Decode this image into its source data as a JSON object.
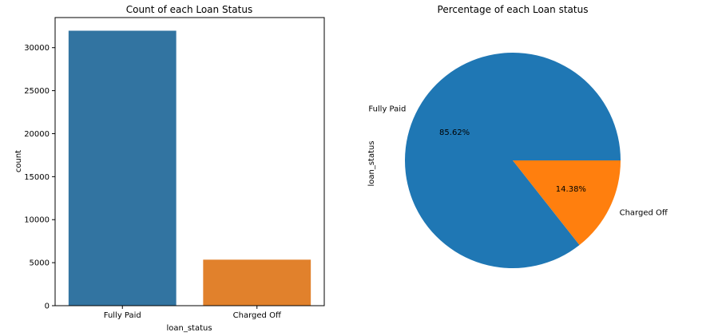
{
  "chart_data": [
    {
      "type": "bar",
      "title": "Count of each Loan Status",
      "xlabel": "loan_status",
      "ylabel": "count",
      "categories": [
        "Fully Paid",
        "Charged Off"
      ],
      "values": [
        31970,
        5350
      ],
      "ylim": [
        0,
        33500
      ],
      "yticks": [
        0,
        5000,
        10000,
        15000,
        20000,
        25000,
        30000
      ],
      "colors": [
        "#3274a1",
        "#e1812c"
      ],
      "grid": false
    },
    {
      "type": "pie",
      "title": "Percentage of each Loan status",
      "ylabel": "loan_status",
      "labels": [
        "Fully Paid",
        "Charged Off"
      ],
      "values": [
        85.62,
        14.38
      ],
      "value_labels": [
        "85.62%",
        "14.38%"
      ],
      "colors": [
        "#1f77b4",
        "#ff7f0e"
      ]
    }
  ]
}
